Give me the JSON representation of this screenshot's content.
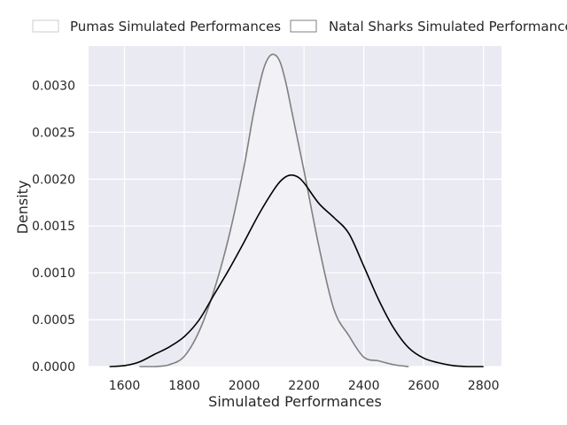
{
  "chart_data": {
    "type": "area",
    "title": "",
    "xlabel": "Simulated Performances",
    "ylabel": "Density",
    "xlim": [
      1480,
      2860
    ],
    "ylim": [
      0,
      0.00342
    ],
    "xticks": [
      1600,
      1800,
      2000,
      2200,
      2400,
      2600,
      2800
    ],
    "xtick_labels": [
      "1600",
      "1800",
      "2000",
      "2200",
      "2400",
      "2600",
      "2800"
    ],
    "yticks": [
      0,
      0.0005,
      0.001,
      0.0015,
      0.002,
      0.0025,
      0.003
    ],
    "ytick_labels": [
      "0.0000",
      "0.0005",
      "0.0010",
      "0.0015",
      "0.0020",
      "0.0025",
      "0.0030"
    ],
    "grid": true,
    "legend_position": "top",
    "colors": {
      "background": "#eaeaf2",
      "grid": "#ffffff",
      "fill": "#f2f1f5"
    },
    "series": [
      {
        "name": "Pumas Simulated Performances",
        "color": "#000000",
        "fill": false,
        "x": [
          1550,
          1600,
          1650,
          1700,
          1750,
          1800,
          1850,
          1900,
          1950,
          2000,
          2050,
          2100,
          2125,
          2150,
          2175,
          2200,
          2250,
          2300,
          2350,
          2400,
          2450,
          2500,
          2550,
          2600,
          2650,
          2700,
          2750,
          2800
        ],
        "y": [
          0.0,
          1e-05,
          5e-05,
          0.00013,
          0.00021,
          0.00032,
          0.0005,
          0.00077,
          0.00104,
          0.00133,
          0.00163,
          0.00189,
          0.00199,
          0.00204,
          0.00203,
          0.00196,
          0.00174,
          0.00159,
          0.00142,
          0.00107,
          0.00071,
          0.00041,
          0.0002,
          9e-05,
          4e-05,
          1e-05,
          0.0,
          0.0
        ]
      },
      {
        "name": "Natal Sharks Simulated Performances",
        "color": "#808080",
        "fill": true,
        "x": [
          1650,
          1700,
          1750,
          1800,
          1850,
          1900,
          1950,
          2000,
          2030,
          2060,
          2080,
          2100,
          2120,
          2140,
          2160,
          2200,
          2250,
          2300,
          2350,
          2400,
          2450,
          2500,
          2550
        ],
        "y": [
          0.0,
          0.0,
          2e-05,
          0.00011,
          0.00038,
          0.00082,
          0.0014,
          0.00214,
          0.00268,
          0.00312,
          0.00329,
          0.00333,
          0.00325,
          0.00302,
          0.00271,
          0.00209,
          0.00128,
          0.00061,
          0.00033,
          0.0001,
          6e-05,
          2e-05,
          0.0
        ]
      }
    ]
  }
}
